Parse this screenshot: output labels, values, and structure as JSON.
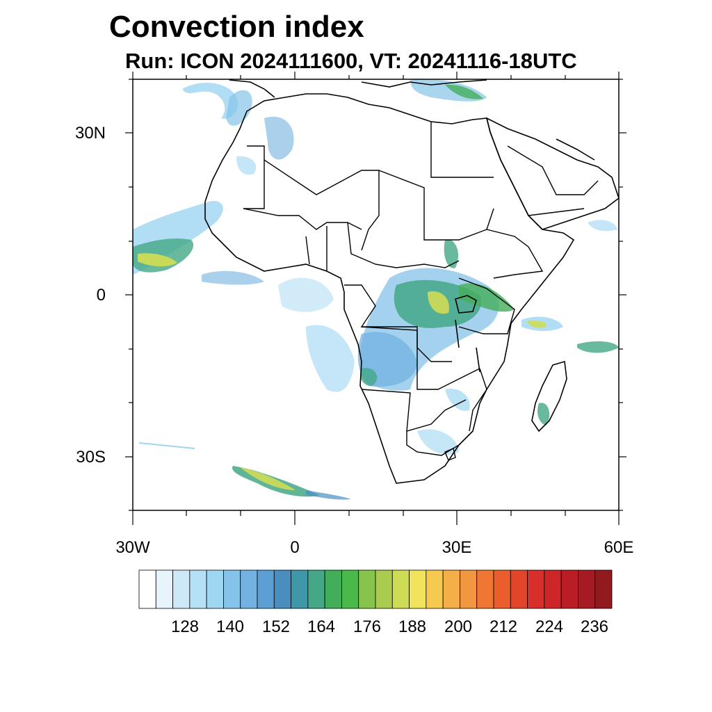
{
  "title": "Convection index",
  "subtitle": "Run: ICON 2024111600,  VT: 20241116-18UTC",
  "map": {
    "lon_range": [
      -30,
      60
    ],
    "lat_range": [
      -40,
      40
    ],
    "x_ticks": [
      {
        "value": -30,
        "label": "30W"
      },
      {
        "value": 0,
        "label": "0"
      },
      {
        "value": 30,
        "label": "30E"
      },
      {
        "value": 60,
        "label": "60E"
      }
    ],
    "y_ticks": [
      {
        "value": 30,
        "label": "30N"
      },
      {
        "value": 0,
        "label": "0"
      },
      {
        "value": -30,
        "label": "30S"
      }
    ]
  },
  "colorbar": {
    "colors": [
      "#ffffff",
      "#e8f4fb",
      "#cde9f7",
      "#b6e0f6",
      "#9fd6f2",
      "#86c3e8",
      "#72b1e0",
      "#5b9fd4",
      "#4a8ec0",
      "#3f98a8",
      "#44a887",
      "#43ae5a",
      "#4ab94a",
      "#87c44c",
      "#a9cc50",
      "#cedc55",
      "#f1e45c",
      "#f6c94f",
      "#f5ae48",
      "#f39640",
      "#f07634",
      "#ec5d2d",
      "#e3452b",
      "#d92f2a",
      "#cc2629",
      "#bb1d27",
      "#a61b23",
      "#911a1f"
    ],
    "labels": [
      "128",
      "140",
      "152",
      "164",
      "176",
      "188",
      "200",
      "212",
      "224",
      "236"
    ]
  }
}
